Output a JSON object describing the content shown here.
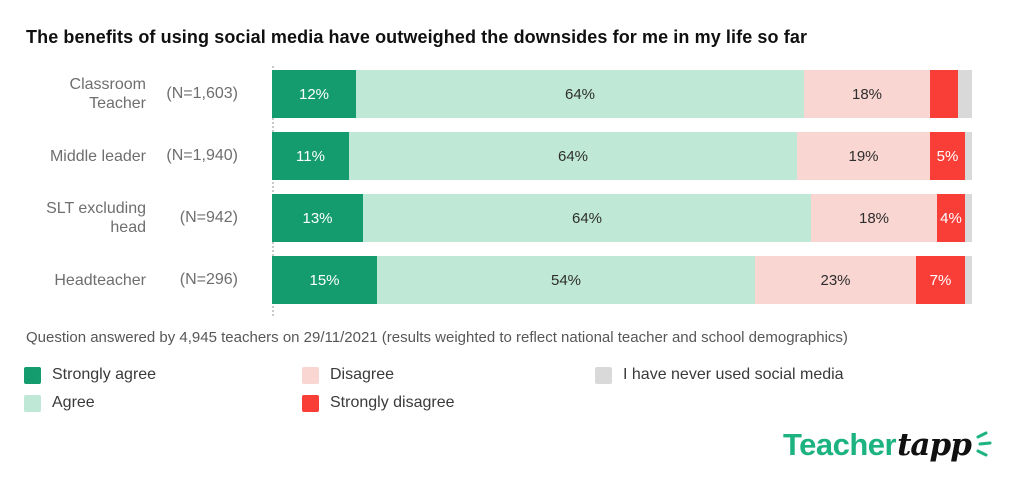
{
  "title": "The benefits of using social media have outweighed the downsides for me in my life so far",
  "footnote": "Question answered by 4,945 teachers on 29/11/2021 (results weighted to reflect national teacher and school demographics)",
  "colors": {
    "strongly_agree": "#149b6e",
    "agree": "#bfe8d6",
    "disagree": "#f9d6d2",
    "strongly_disagree": "#f93e38",
    "never_used": "#d9d9d9",
    "axis_dotted_line": "#c9c9c9",
    "category_text": "#6e6e6e",
    "brand_green": "#1db381"
  },
  "chart_data": {
    "type": "bar",
    "orientation": "horizontal_stacked",
    "title": "The benefits of using social media have outweighed the downsides for me in my life so far",
    "categories": [
      "Classroom Teacher",
      "Middle leader",
      "SLT excluding head",
      "Headteacher"
    ],
    "sample_sizes": [
      "(N=1,603)",
      "(N=1,940)",
      "(N=942)",
      "(N=296)"
    ],
    "xlim": [
      0,
      100
    ],
    "grid": false,
    "legend_position": "bottom",
    "series": [
      {
        "key": "strongly-agree",
        "name": "Strongly agree",
        "color": "#149b6e",
        "text_color": "#ffffff",
        "values": [
          12,
          11,
          13,
          15
        ],
        "labels": [
          "12%",
          "11%",
          "13%",
          "15%"
        ]
      },
      {
        "key": "agree",
        "name": "Agree",
        "color": "#bfe8d6",
        "text_color": "#2e2e2e",
        "values": [
          64,
          64,
          64,
          54
        ],
        "labels": [
          "64%",
          "64%",
          "64%",
          "54%"
        ]
      },
      {
        "key": "disagree",
        "name": "Disagree",
        "color": "#f9d6d2",
        "text_color": "#2e2e2e",
        "values": [
          18,
          19,
          18,
          23
        ],
        "labels": [
          "18%",
          "19%",
          "18%",
          "23%"
        ]
      },
      {
        "key": "strongly-disagree",
        "name": "Strongly disagree",
        "color": "#f93e38",
        "text_color": "#ffffff",
        "values": [
          4,
          5,
          4,
          7
        ],
        "labels": [
          "",
          "5%",
          "4%",
          "7%"
        ]
      },
      {
        "key": "never-used",
        "name": "I have never used social media",
        "color": "#d9d9d9",
        "text_color": "#2e2e2e",
        "values": [
          2,
          1,
          1,
          1
        ],
        "labels": [
          "",
          "",
          "",
          ""
        ]
      }
    ]
  },
  "legend": {
    "column1": [
      "Strongly agree",
      "Agree"
    ],
    "column2": [
      "Disagree",
      "Strongly disagree"
    ],
    "column3": [
      "I have never used social media"
    ]
  },
  "logo": {
    "teacher": "Teacher",
    "tapp": "tapp"
  }
}
